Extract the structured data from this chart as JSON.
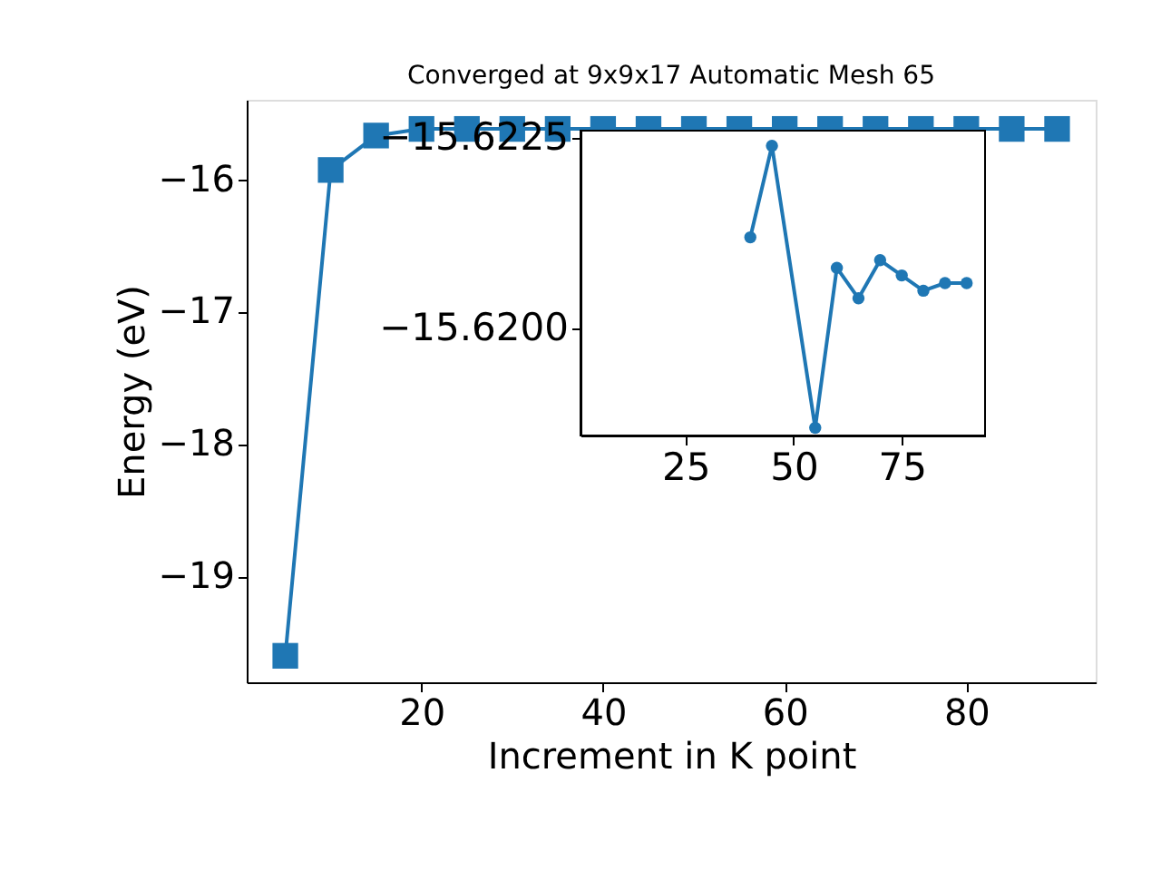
{
  "chart_data": [
    {
      "type": "line",
      "title": "Converged at 9x9x17 Automatic Mesh 65",
      "xlabel": "Increment in K point",
      "ylabel": "Energy (eV)",
      "x": [
        5,
        10,
        15,
        20,
        25,
        30,
        35,
        40,
        45,
        50,
        55,
        60,
        65,
        70,
        75,
        80,
        85,
        90
      ],
      "marker": "square",
      "line_style": "solid",
      "xlim": [
        0.75,
        94.25
      ],
      "ylim": [
        -19.8,
        -15.4
      ],
      "xticks": [
        20,
        40,
        60,
        80
      ],
      "yticks": [
        {
          "value": -19,
          "label": "−19"
        },
        {
          "value": -18,
          "label": "−18"
        },
        {
          "value": -17,
          "label": "−17"
        },
        {
          "value": -16,
          "label": "−16"
        }
      ],
      "series": [
        {
          "color": "#1f77b4",
          "values": [
            -19.6,
            -15.93,
            -15.67,
            -15.62,
            -15.62,
            -15.62,
            -15.62,
            -15.62,
            -15.62,
            -15.62,
            -15.62,
            -15.62,
            -15.62,
            -15.62,
            -15.62,
            -15.62,
            -15.62,
            -15.62
          ]
        }
      ]
    },
    {
      "type": "line",
      "x": [
        40,
        45,
        55,
        60,
        65,
        70,
        75,
        80,
        85,
        90
      ],
      "marker": "circle",
      "line_style": "solid",
      "xlim": [
        0.75,
        94.25
      ],
      "ylim": [
        -15.6186,
        -15.6226
      ],
      "xticks": [
        25,
        50,
        75
      ],
      "yticks": [
        {
          "value": -15.6225,
          "label": "−15.6225"
        },
        {
          "value": -15.62,
          "label": "−15.6200"
        }
      ],
      "series": [
        {
          "color": "#1f77b4",
          "values": [
            -15.6212,
            -15.6224,
            -15.6187,
            -15.6208,
            -15.6204,
            -15.6209,
            -15.6207,
            -15.6205,
            -15.6206,
            -15.6206
          ]
        }
      ]
    }
  ]
}
